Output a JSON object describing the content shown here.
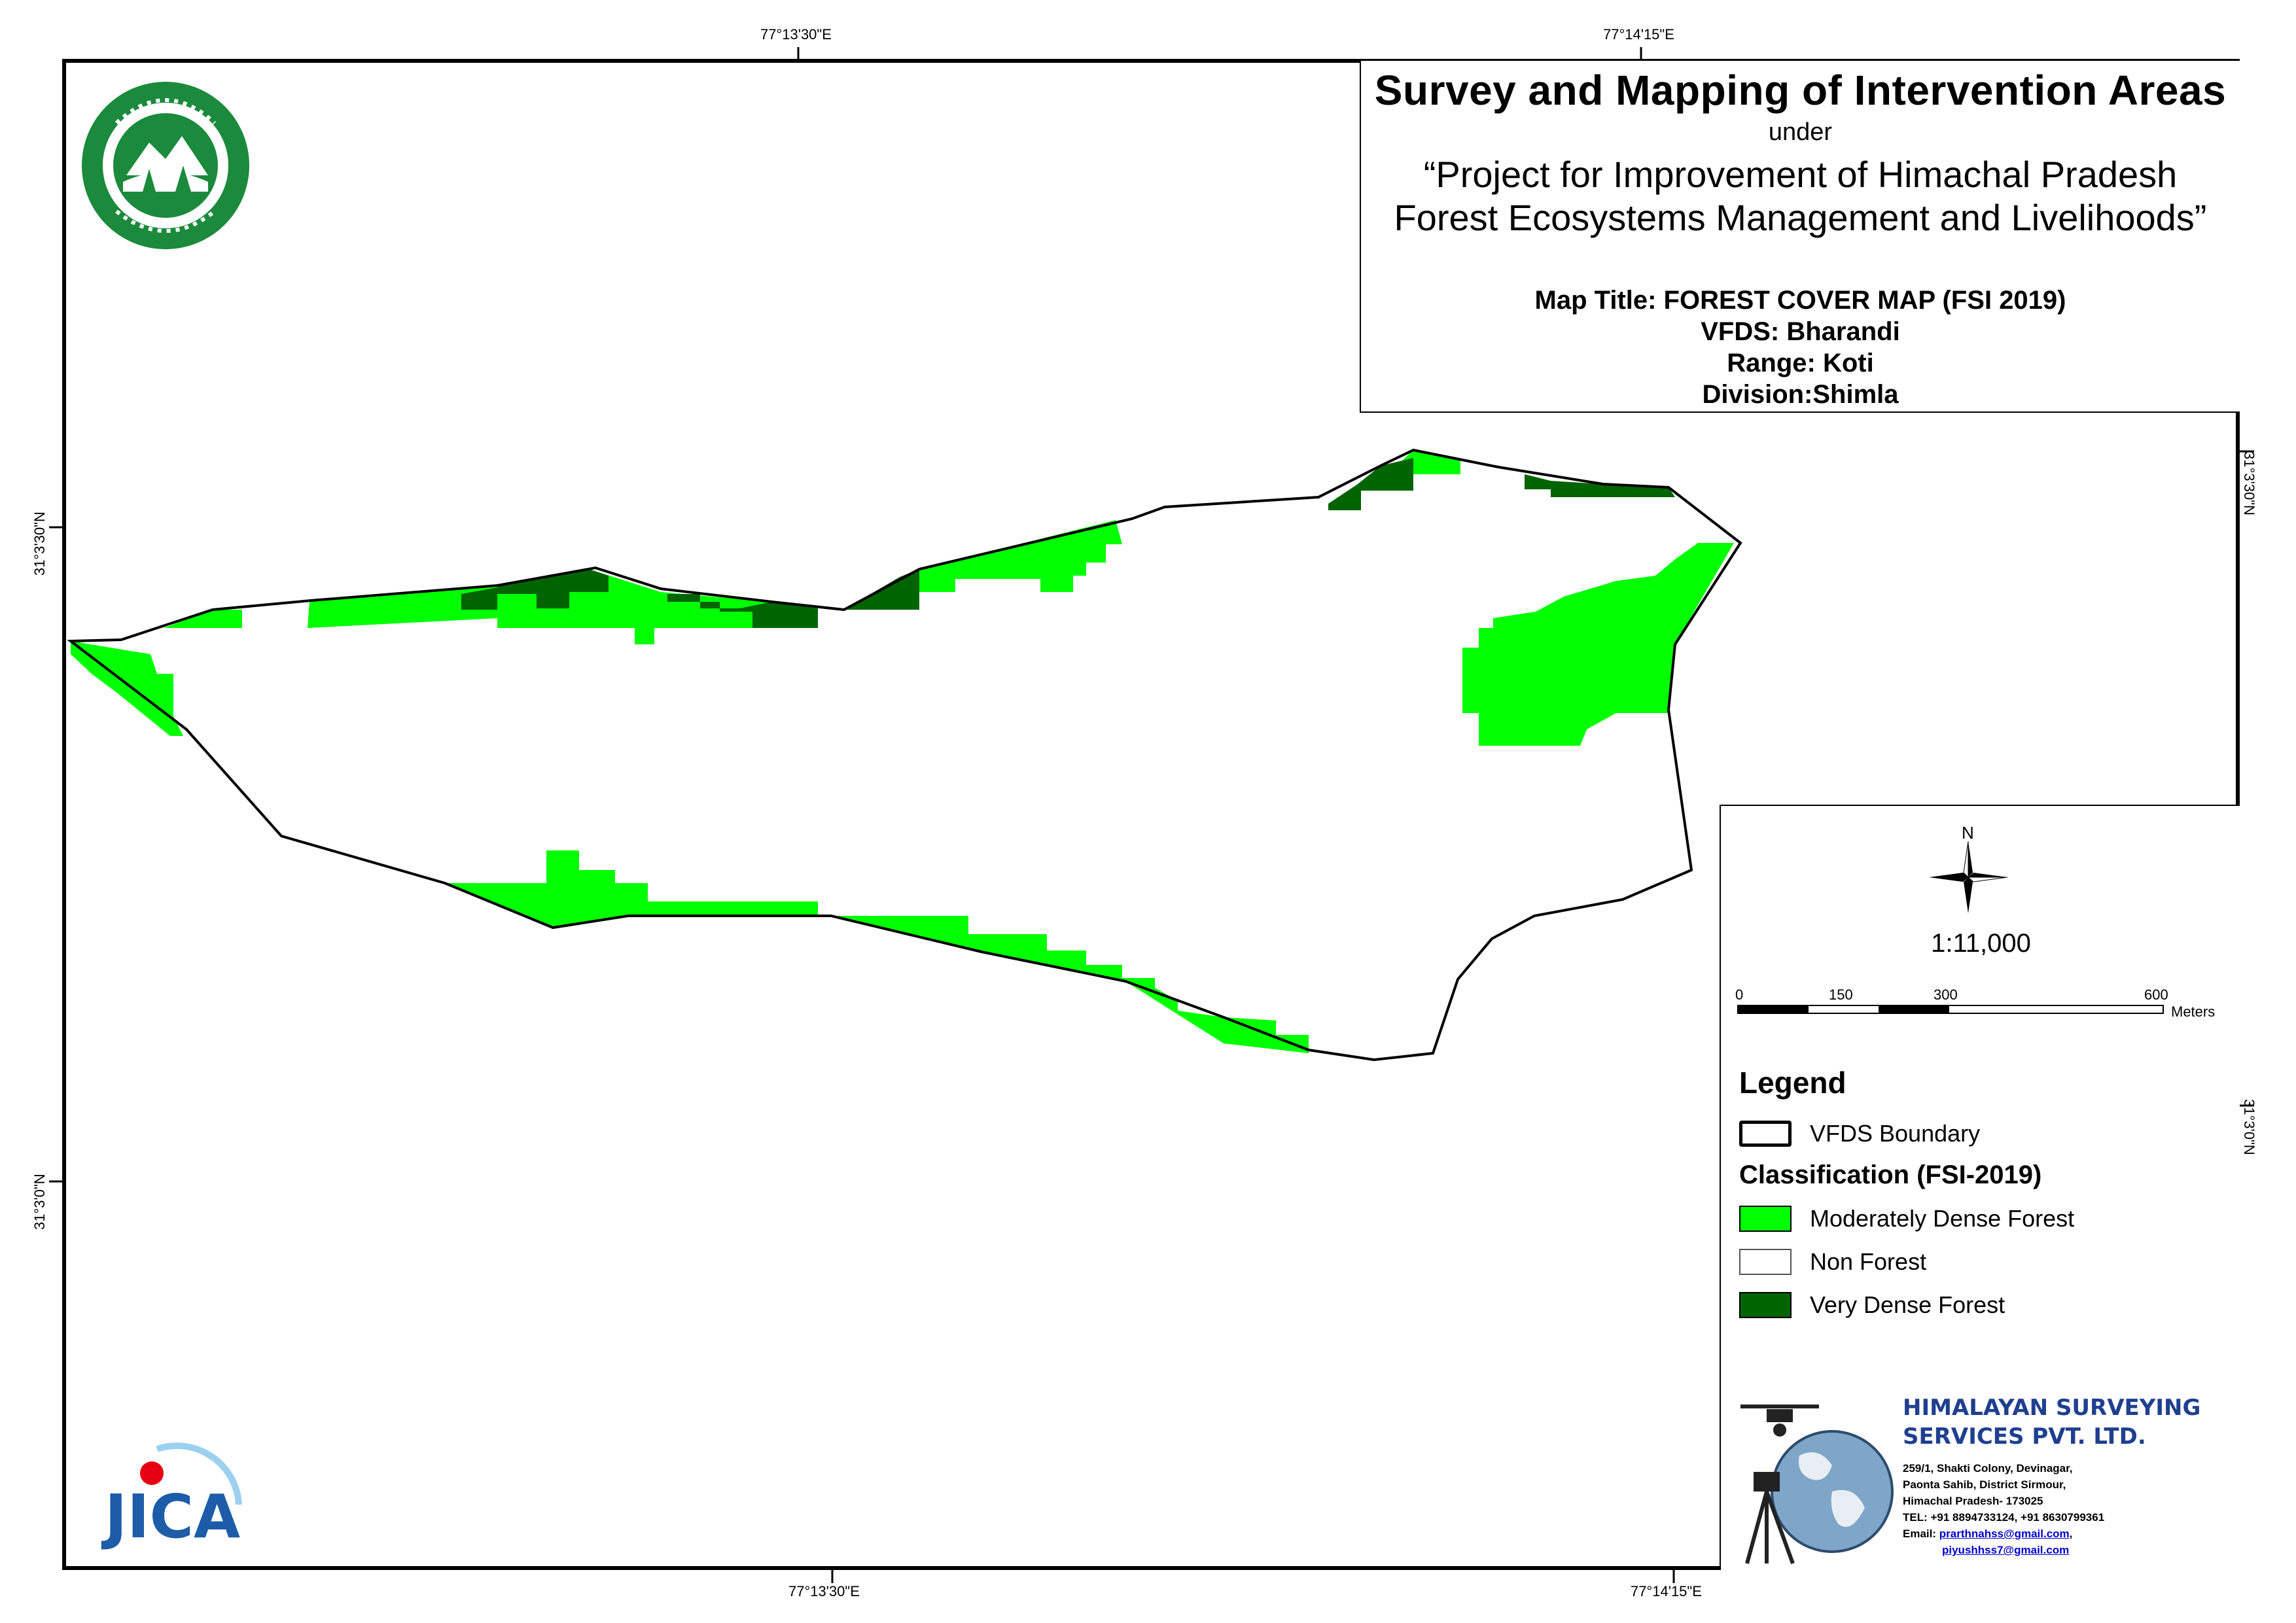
{
  "header": {
    "title": "Survey and Mapping of Intervention Areas",
    "subtitle": "under",
    "project_line1": "“Project for Improvement of Himachal Pradesh",
    "project_line2": "Forest Ecosystems Management and Livelihoods”"
  },
  "map_info": {
    "map_title": "Map Title: FOREST COVER MAP (FSI 2019)",
    "vfds": "VFDS: Bharandi",
    "range": "Range: Koti",
    "division": "Division:Shimla"
  },
  "coordinates": {
    "top_left": "77°13'30\"E",
    "top_right": "77°14'15\"E",
    "bottom_left": "77°13'30\"E",
    "bottom_right": "77°14'15\"E",
    "left_upper": "31°3'30\"N",
    "left_lower": "31°3'0\"N",
    "right_upper": "31°3'30\"N",
    "right_lower": "31°3'0\"N"
  },
  "north_arrow": {
    "label": "N"
  },
  "scale": {
    "ratio": "1:11,000",
    "ticks": [
      "0",
      "150",
      "300",
      "600"
    ],
    "unit": "Meters"
  },
  "legend": {
    "title": "Legend",
    "boundary_label": "VFDS Boundary",
    "classification_title": "Classification (FSI-2019)",
    "classes": [
      {
        "label": "Moderately Dense Forest",
        "color": "#00ff00"
      },
      {
        "label": "Non Forest",
        "color": "#ffffff"
      },
      {
        "label": "Very Dense Forest",
        "color": "#006400"
      }
    ]
  },
  "company": {
    "name_line1": "HIMALAYAN SURVEYING",
    "name_line2": "SERVICES PVT. LTD.",
    "address_line1": "259/1, Shakti Colony, Devinagar,",
    "address_line2": "Paonta Sahib, District Sirmour,",
    "address_line3": "Himachal Pradesh- 173025",
    "phone": "TEL: +91 8894733124, +91 8630799361",
    "email_label": "Email: ",
    "email1": "prarthnahss@gmail.com",
    "email1_suffix": ",",
    "email2": "piyushhss7@gmail.com"
  },
  "logos": {
    "forest_dept": "forest-department-seal",
    "jica": "JICA"
  },
  "colors": {
    "moderately_dense": "#00ff00",
    "very_dense": "#006400",
    "brand_blue": "#1f3f8f"
  }
}
